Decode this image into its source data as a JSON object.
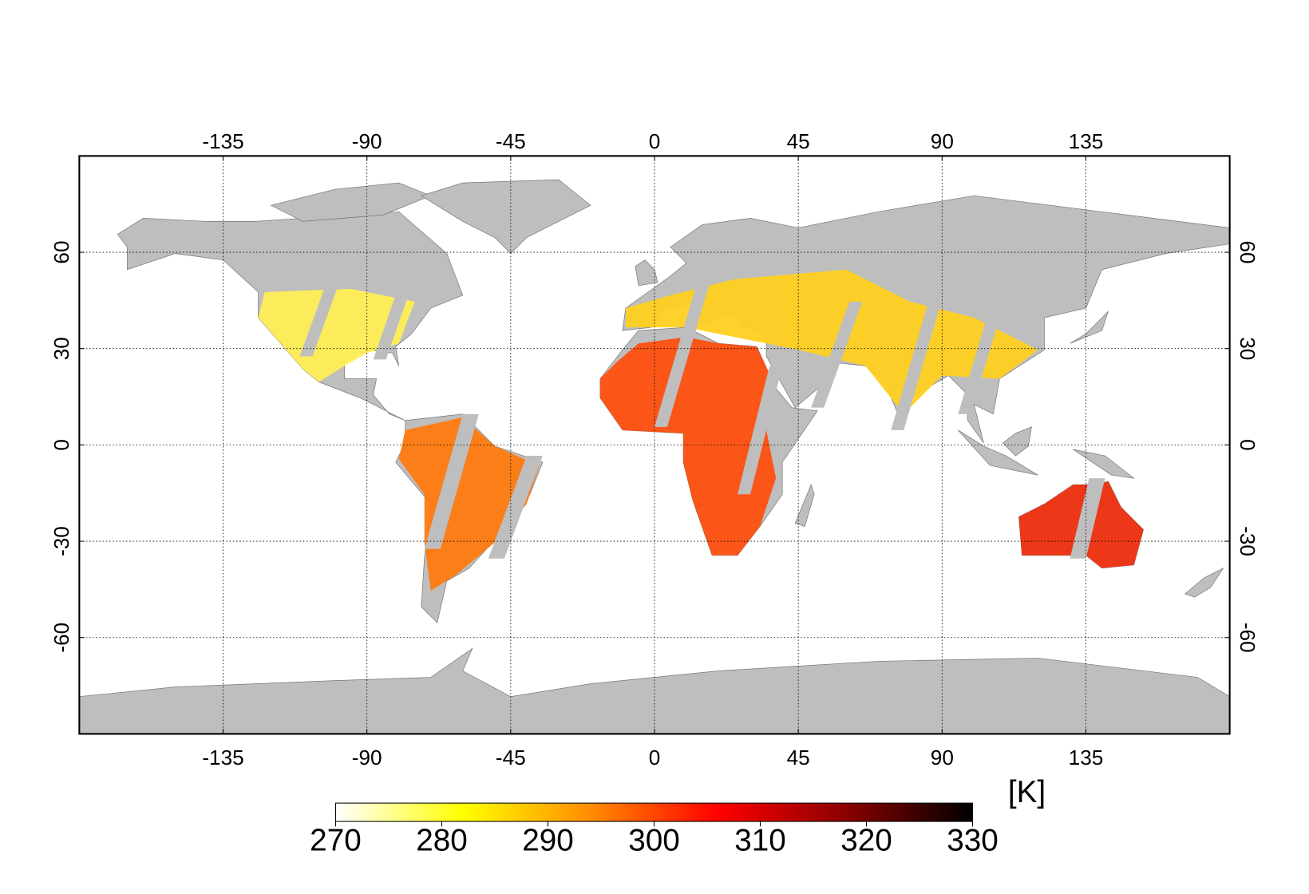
{
  "map": {
    "xlim": [
      -180,
      180
    ],
    "ylim": [
      -90,
      90
    ],
    "xticks": [
      -135,
      -90,
      -45,
      0,
      45,
      90,
      135
    ],
    "yticks": [
      -60,
      -30,
      0,
      30,
      60
    ],
    "grid": true
  },
  "colorbar": {
    "lim": [
      270,
      330
    ],
    "ticks": [
      270,
      280,
      290,
      300,
      310,
      320,
      330
    ],
    "unit": "[K]",
    "colors": [
      "#ffffff",
      "#ffff00",
      "#ff8c00",
      "#ff0000",
      "#8b0000",
      "#000000"
    ]
  }
}
